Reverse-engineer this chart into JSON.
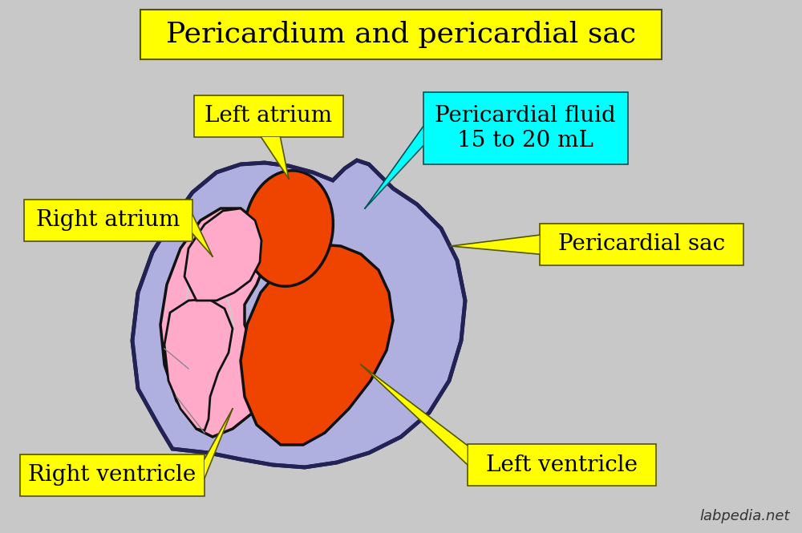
{
  "background_color": "#c8c8c8",
  "title": "Pericardium and pericardial sac",
  "title_box_color": "#ffff00",
  "title_fontsize": 26,
  "label_fontsize": 20,
  "watermark": "labpedia.net",
  "labels": {
    "left_atrium": "Left atrium",
    "pericardial_fluid": "Pericardial fluid\n15 to 20 mL",
    "right_atrium": "Right atrium",
    "pericardial_sac": "Pericardial sac",
    "right_ventricle": "Right ventricle",
    "left_ventricle": "Left ventricle"
  },
  "label_bg_colors": {
    "left_atrium": "#ffff00",
    "pericardial_fluid": "#00ffff",
    "right_atrium": "#ffff00",
    "pericardial_sac": "#ffff00",
    "right_ventricle": "#ffff00",
    "left_ventricle": "#ffff00"
  },
  "heart_colors": {
    "pericardial_sac_fill": "#b0b0e0",
    "pericardial_sac_edge": "#222255",
    "right_pink_fill": "#ffaac8",
    "right_pink_edge": "#111111",
    "orange_red_fill": "#ee4400",
    "orange_red_edge": "#111111",
    "outline_color": "#111111"
  }
}
